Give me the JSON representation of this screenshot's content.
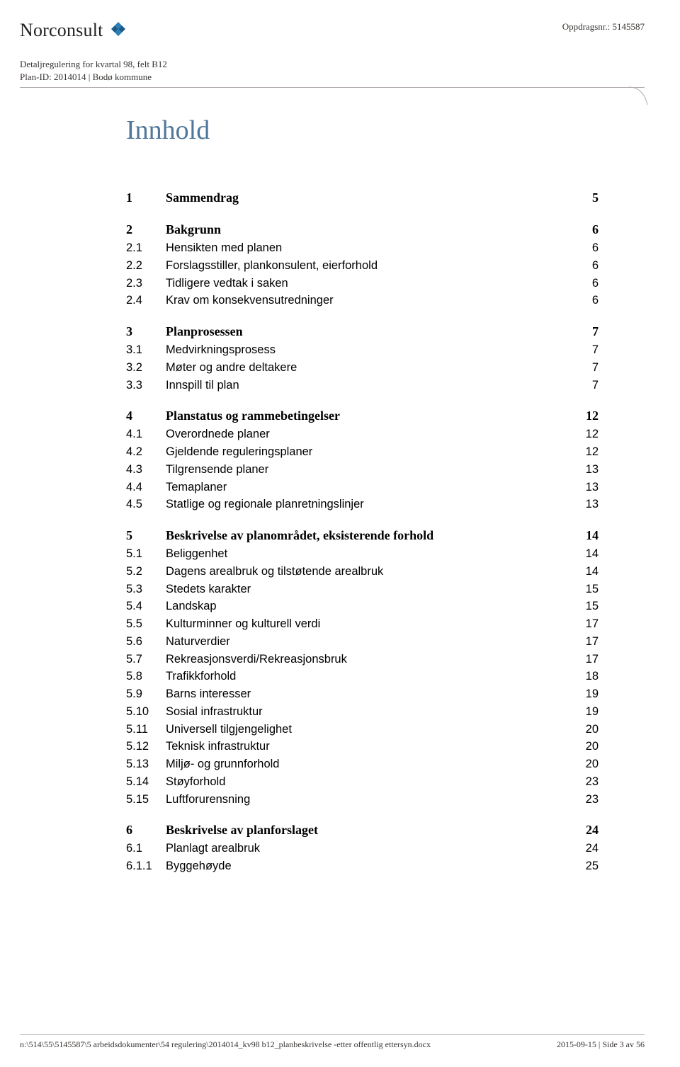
{
  "header": {
    "company_name": "Norconsult",
    "oppdrag_label": "Oppdragsnr.: 5145587",
    "sub1": "Detaljregulering for kvartal 98, felt B12",
    "sub2": "Plan-ID: 2014014  |  Bodø kommune"
  },
  "title": "Innhold",
  "toc": [
    {
      "level": 1,
      "num": "1",
      "title": "Sammendrag",
      "page": "5"
    },
    {
      "level": 1,
      "num": "2",
      "title": "Bakgrunn",
      "page": "6"
    },
    {
      "level": 2,
      "num": "2.1",
      "title": "Hensikten med planen",
      "page": "6"
    },
    {
      "level": 2,
      "num": "2.2",
      "title": "Forslagsstiller, plankonsulent, eierforhold",
      "page": "6"
    },
    {
      "level": 2,
      "num": "2.3",
      "title": "Tidligere vedtak i saken",
      "page": "6"
    },
    {
      "level": 2,
      "num": "2.4",
      "title": "Krav om konsekvensutredninger",
      "page": "6"
    },
    {
      "level": 1,
      "num": "3",
      "title": "Planprosessen",
      "page": "7"
    },
    {
      "level": 2,
      "num": "3.1",
      "title": "Medvirkningsprosess",
      "page": "7"
    },
    {
      "level": 2,
      "num": "3.2",
      "title": "Møter og andre deltakere",
      "page": "7"
    },
    {
      "level": 2,
      "num": "3.3",
      "title": "Innspill til plan",
      "page": "7"
    },
    {
      "level": 1,
      "num": "4",
      "title": "Planstatus og rammebetingelser",
      "page": "12"
    },
    {
      "level": 2,
      "num": "4.1",
      "title": "Overordnede planer",
      "page": "12"
    },
    {
      "level": 2,
      "num": "4.2",
      "title": "Gjeldende reguleringsplaner",
      "page": "12"
    },
    {
      "level": 2,
      "num": "4.3",
      "title": "Tilgrensende planer",
      "page": "13"
    },
    {
      "level": 2,
      "num": "4.4",
      "title": "Temaplaner",
      "page": "13"
    },
    {
      "level": 2,
      "num": "4.5",
      "title": "Statlige og regionale planretningslinjer",
      "page": "13"
    },
    {
      "level": 1,
      "num": "5",
      "title": "Beskrivelse av planområdet, eksisterende forhold",
      "page": "14"
    },
    {
      "level": 2,
      "num": "5.1",
      "title": "Beliggenhet",
      "page": "14"
    },
    {
      "level": 2,
      "num": "5.2",
      "title": "Dagens arealbruk og tilstøtende arealbruk",
      "page": "14"
    },
    {
      "level": 2,
      "num": "5.3",
      "title": "Stedets karakter",
      "page": "15"
    },
    {
      "level": 2,
      "num": "5.4",
      "title": "Landskap",
      "page": "15"
    },
    {
      "level": 2,
      "num": "5.5",
      "title": "Kulturminner og kulturell verdi",
      "page": "17"
    },
    {
      "level": 2,
      "num": "5.6",
      "title": "Naturverdier",
      "page": "17"
    },
    {
      "level": 2,
      "num": "5.7",
      "title": "Rekreasjonsverdi/Rekreasjonsbruk",
      "page": "17"
    },
    {
      "level": 2,
      "num": "5.8",
      "title": "Trafikkforhold",
      "page": "18"
    },
    {
      "level": 2,
      "num": "5.9",
      "title": "Barns interesser",
      "page": "19"
    },
    {
      "level": 2,
      "num": "5.10",
      "title": "Sosial infrastruktur",
      "page": "19"
    },
    {
      "level": 2,
      "num": "5.11",
      "title": "Universell tilgjengelighet",
      "page": "20"
    },
    {
      "level": 2,
      "num": "5.12",
      "title": "Teknisk infrastruktur",
      "page": "20"
    },
    {
      "level": 2,
      "num": "5.13",
      "title": "Miljø- og grunnforhold",
      "page": "20"
    },
    {
      "level": 2,
      "num": "5.14",
      "title": "Støyforhold",
      "page": "23"
    },
    {
      "level": 2,
      "num": "5.15",
      "title": "Luftforurensning",
      "page": "23"
    },
    {
      "level": 1,
      "num": "6",
      "title": "Beskrivelse av planforslaget",
      "page": "24"
    },
    {
      "level": 2,
      "num": "6.1",
      "title": "Planlagt arealbruk",
      "page": "24"
    },
    {
      "level": 3,
      "num": "6.1.1",
      "title": "Byggehøyde",
      "page": "25"
    }
  ],
  "footer": {
    "left": "n:\\514\\55\\5145587\\5 arbeidsdokumenter\\54 regulering\\2014014_kv98 b12_planbeskrivelse -etter offentlig ettersyn.docx",
    "right": "2015-09-15  |  Side 3 av 56"
  },
  "colors": {
    "title_color": "#4f779b",
    "text_color": "#000000",
    "meta_color": "#383432",
    "rule_color": "#b0aba8",
    "logo_primary": "#2b7fb5",
    "logo_secondary": "#1a5b8c"
  }
}
